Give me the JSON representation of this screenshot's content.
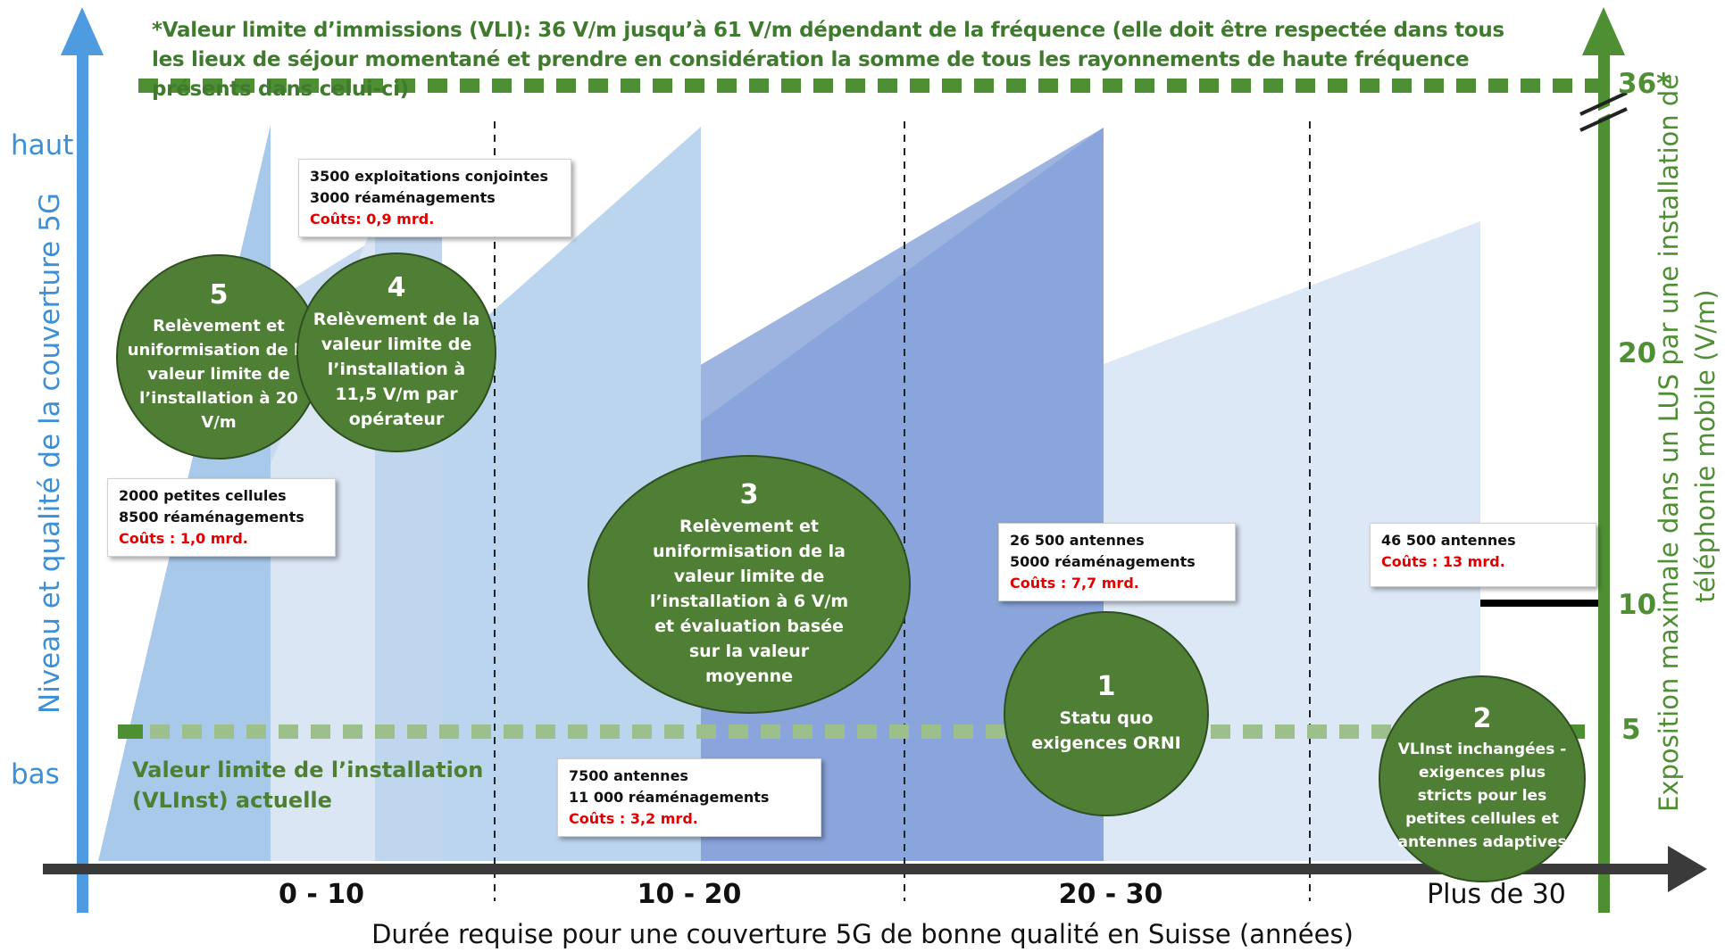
{
  "note": "*Valeur limite d’immissions (VLI): 36 V/m jusqu’à 61 V/m dépendant de la fréquence (elle doit être respectée dans tous les lieux de séjour momentané et prendre en considération la somme de tous les rayonnements de haute fréquence présents dans celui-ci)",
  "left_axis": {
    "label": "Niveau et qualité de la couverture 5G",
    "high": "haut",
    "low": "bas"
  },
  "right_axis": {
    "label_line1": "Exposition maximale dans un LUS par une installation de",
    "label_line2": "téléphonie mobile  (V/m)",
    "ticks": [
      "36*",
      "20",
      "10",
      "5"
    ]
  },
  "x_axis": {
    "label": "Durée requise pour une couverture 5G de bonne qualité en Suisse (années)",
    "periods": [
      "0 - 10",
      "10 - 20",
      "20 - 30",
      "Plus de 30"
    ]
  },
  "vlinst_label": {
    "line1": "Valeur limite de l’installation",
    "line2": "(VLInst) actuelle"
  },
  "scenarios": [
    {
      "number": "5",
      "lines": [
        "Relèvement et",
        "uniformisation de la",
        "valeur limite de",
        "l’installation à 20",
        "V/m"
      ]
    },
    {
      "number": "4",
      "lines": [
        "Relèvement de la",
        "valeur limite de",
        "l’installation à",
        "11,5 V/m par",
        "opérateur"
      ]
    },
    {
      "number": "3",
      "lines": [
        "Relèvement et",
        "uniformisation de la",
        "valeur limite de",
        "l’installation à 6 V/m",
        "et évaluation basée",
        "sur la valeur",
        "moyenne"
      ]
    },
    {
      "number": "1",
      "lines": [
        "Statu quo",
        "exigences ORNI"
      ]
    },
    {
      "number": "2",
      "lines": [
        "VLInst inchangées -",
        "exigences plus",
        "stricts pour les",
        "petites cellules et",
        "antennes adaptives"
      ]
    }
  ],
  "boxes": [
    {
      "lines": [
        "3500 exploitations  conjointes",
        "3000 réaménagements"
      ],
      "cost": "Coûts:  0,9 mrd."
    },
    {
      "lines": [
        "2000 petites cellules",
        "8500 réaménagements"
      ],
      "cost": "Coûts : 1,0 mrd."
    },
    {
      "lines": [
        "7500 antennes",
        "11 000 réaménagements"
      ],
      "cost": "Coûts :  3,2 mrd."
    },
    {
      "lines": [
        "26 500 antennes",
        "5000 réaménagements"
      ],
      "cost": "Coûts : 7,7 mrd."
    },
    {
      "lines": [
        "46 500 antennes"
      ],
      "cost": "Coûts : 13 mrd."
    }
  ],
  "colors": {
    "blue_axis": "#4f9be0",
    "green_axis": "#4f8f34",
    "bubble": "#4f7f34",
    "cost_red": "#e10000"
  }
}
